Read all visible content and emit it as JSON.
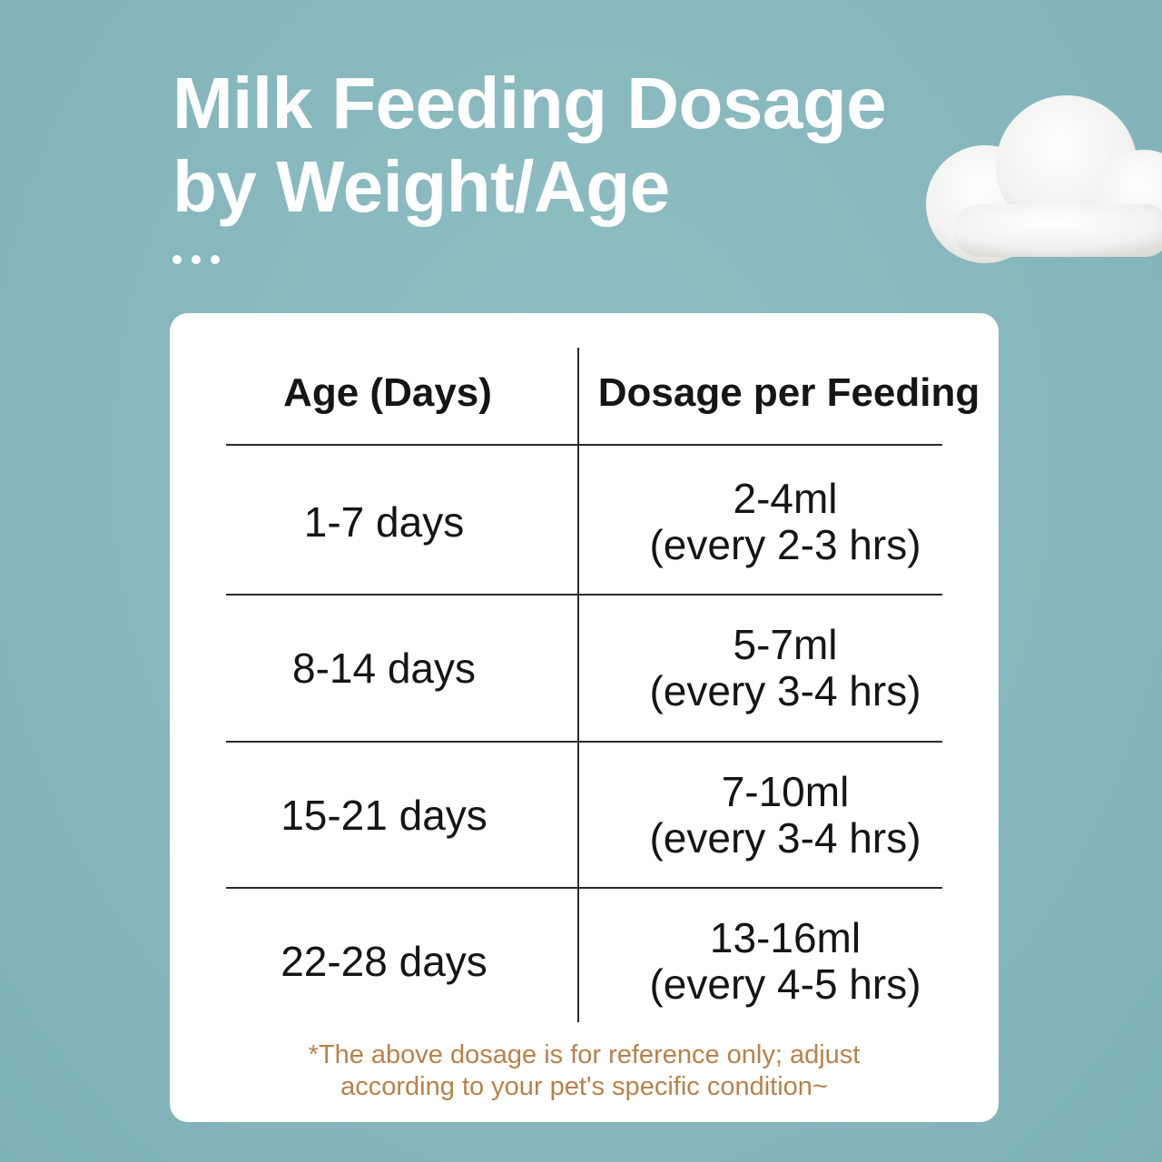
{
  "title": {
    "line1": "Milk Feeding Dosage",
    "line2": "by Weight/Age"
  },
  "table": {
    "headers": {
      "age": "Age (Days)",
      "dosage": "Dosage per Feeding"
    },
    "rows": [
      {
        "age": "1-7 days",
        "amount": "2-4ml",
        "frequency": "(every 2-3 hrs)"
      },
      {
        "age": "8-14 days",
        "amount": "5-7ml",
        "frequency": "(every 3-4 hrs)"
      },
      {
        "age": "15-21 days",
        "amount": "7-10ml",
        "frequency": "(every 3-4 hrs)"
      },
      {
        "age": "22-28 days",
        "amount": "13-16ml",
        "frequency": "(every 4-5 hrs)"
      }
    ]
  },
  "note": {
    "line1": "*The above dosage is for reference only; adjust",
    "line2": "according to your pet's specific condition~"
  },
  "icons": {
    "cloud": "cloud-icon",
    "dots": "ellipsis-dots"
  },
  "colors": {
    "background": "#86b7bc",
    "card": "#ffffff",
    "note": "#b8824a",
    "text": "#151515"
  }
}
